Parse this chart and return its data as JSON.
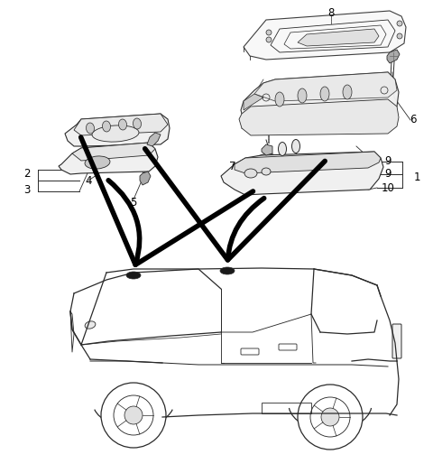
{
  "bg": "#ffffff",
  "lc": "#2a2a2a",
  "lw": 0.8,
  "fig_w": 4.8,
  "fig_h": 5.24,
  "dpi": 100,
  "labels": [
    [
      367,
      14,
      "8"
    ],
    [
      458,
      133,
      "6"
    ],
    [
      462,
      196,
      "1"
    ],
    [
      258,
      185,
      "7"
    ],
    [
      430,
      179,
      "9"
    ],
    [
      430,
      193,
      "9"
    ],
    [
      430,
      208,
      "10"
    ],
    [
      30,
      192,
      "2"
    ],
    [
      98,
      200,
      "4"
    ],
    [
      30,
      210,
      "3"
    ],
    [
      148,
      224,
      "5"
    ]
  ]
}
